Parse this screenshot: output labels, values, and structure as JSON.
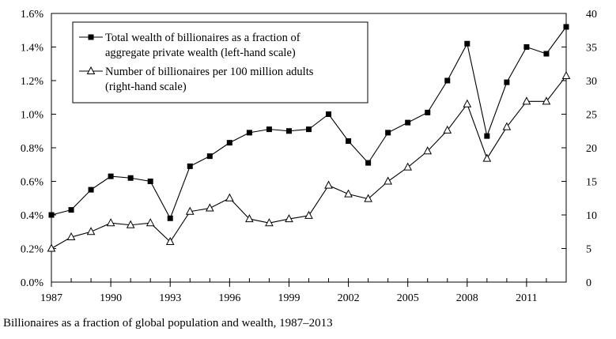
{
  "caption": "Billionaires as a fraction of global population and wealth, 1987–2013",
  "chart_data": {
    "type": "line",
    "title": "",
    "xlabel": "",
    "ylabel": "",
    "x": [
      1987,
      1988,
      1989,
      1990,
      1991,
      1992,
      1993,
      1994,
      1995,
      1996,
      1997,
      1998,
      1999,
      2000,
      2001,
      2002,
      2003,
      2004,
      2005,
      2006,
      2007,
      2008,
      2009,
      2010,
      2011,
      2012,
      2013
    ],
    "x_ticks": [
      1987,
      1990,
      1993,
      1996,
      1999,
      2002,
      2005,
      2008,
      2011
    ],
    "x_tick_labels": [
      "1987",
      "1990",
      "1993",
      "1996",
      "1999",
      "2002",
      "2005",
      "2008",
      "2011"
    ],
    "xlim": [
      1987,
      2013
    ],
    "ylim_left": [
      0,
      1.6
    ],
    "left_ticks": [
      0,
      0.2,
      0.4,
      0.6,
      0.8,
      1.0,
      1.2,
      1.4,
      1.6
    ],
    "left_tick_labels": [
      "0.0%",
      "0.2%",
      "0.4%",
      "0.6%",
      "0.8%",
      "1.0%",
      "1.2%",
      "1.4%",
      "1.6%"
    ],
    "ylim_right": [
      0,
      40
    ],
    "right_ticks": [
      0,
      5,
      10,
      15,
      20,
      25,
      30,
      35,
      40
    ],
    "right_tick_labels": [
      "0",
      "5",
      "10",
      "15",
      "20",
      "25",
      "30",
      "35",
      "40"
    ],
    "grid": false,
    "legend_position": "top-left",
    "series": [
      {
        "name": "Total wealth of billionaires as a fraction of aggregate private wealth (left-hand scale)",
        "legend_lines": [
          "Total wealth of billionaires as a fraction of",
          "aggregate private wealth (left-hand scale)"
        ],
        "marker": "square",
        "axis": "left",
        "unit": "%",
        "values": [
          0.4,
          0.43,
          0.55,
          0.63,
          0.62,
          0.6,
          0.38,
          0.69,
          0.75,
          0.83,
          0.89,
          0.91,
          0.9,
          0.91,
          1.0,
          0.84,
          0.71,
          0.89,
          0.95,
          1.01,
          1.2,
          1.42,
          0.87,
          1.19,
          1.4,
          1.36,
          1.52
        ]
      },
      {
        "name": "Number of billionaires per 100 million adults (right-hand scale)",
        "legend_lines": [
          "Number of billionaires per 100 million adults",
          "(right-hand scale)"
        ],
        "marker": "triangle",
        "axis": "right",
        "values": [
          5.0,
          6.7,
          7.5,
          8.8,
          8.5,
          8.8,
          6.0,
          10.5,
          11.0,
          12.5,
          9.4,
          8.8,
          9.4,
          9.9,
          14.4,
          13.1,
          12.4,
          15.0,
          17.1,
          19.5,
          22.6,
          26.5,
          18.4,
          23.1,
          26.9,
          26.9,
          30.7
        ]
      }
    ]
  }
}
